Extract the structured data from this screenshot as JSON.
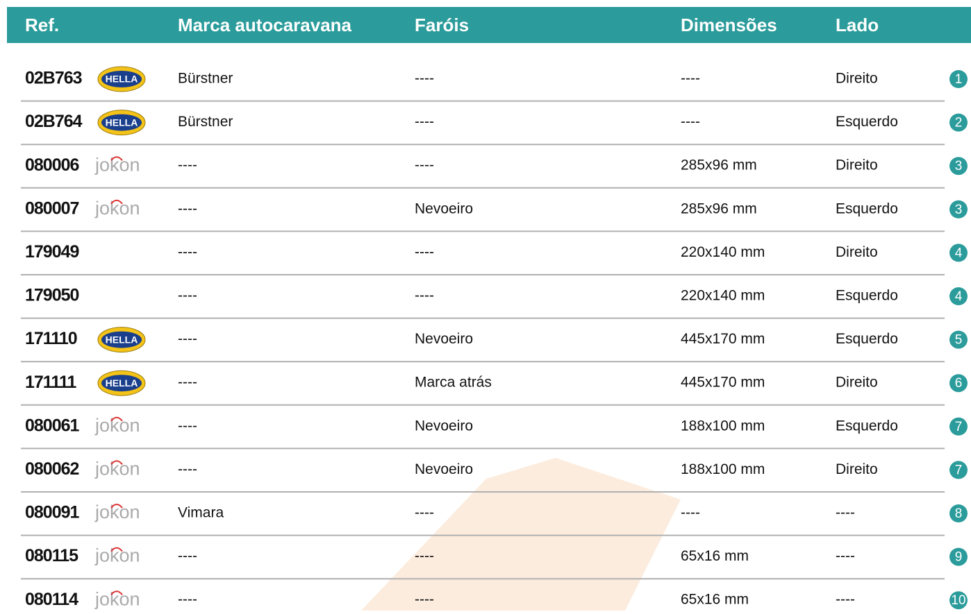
{
  "header": [
    "Ref.",
    "Marca autocaravana",
    "Faróis",
    "Dimensões",
    "Lado"
  ],
  "rows": [
    {
      "ref": "02B763",
      "logo": "HELLA",
      "brand": "Bürstner",
      "lights": "----",
      "dims": "----",
      "side": "Direito",
      "num": "1"
    },
    {
      "ref": "02B764",
      "logo": "HELLA",
      "brand": "Bürstner",
      "lights": "----",
      "dims": "----",
      "side": "Esquerdo",
      "num": "2"
    },
    {
      "ref": "080006",
      "logo": "jokon",
      "brand": "----",
      "lights": "----",
      "dims": "285x96 mm",
      "side": "Direito",
      "num": "3"
    },
    {
      "ref": "080007",
      "logo": "jokon",
      "brand": "----",
      "lights": "Nevoeiro",
      "dims": "285x96 mm",
      "side": "Esquerdo",
      "num": "3"
    },
    {
      "ref": "179049",
      "logo": null,
      "brand": "----",
      "lights": "----",
      "dims": "220x140 mm",
      "side": "Direito",
      "num": "4"
    },
    {
      "ref": "179050",
      "logo": null,
      "brand": "----",
      "lights": "----",
      "dims": "220x140 mm",
      "side": "Esquerdo",
      "num": "4"
    },
    {
      "ref": "171110",
      "logo": "HELLA",
      "brand": "----",
      "lights": "Nevoeiro",
      "dims": "445x170 mm",
      "side": "Esquerdo",
      "num": "5"
    },
    {
      "ref": "171111",
      "logo": "HELLA",
      "brand": "----",
      "lights": "Marca atrás",
      "dims": "445x170 mm",
      "side": "Direito",
      "num": "6"
    },
    {
      "ref": "080061",
      "logo": "jokon",
      "brand": "----",
      "lights": "Nevoeiro",
      "dims": "188x100 mm",
      "side": "Esquerdo",
      "num": "7"
    },
    {
      "ref": "080062",
      "logo": "jokon",
      "brand": "----",
      "lights": "Nevoeiro",
      "dims": "188x100 mm",
      "side": "Direito",
      "num": "7"
    },
    {
      "ref": "080091",
      "logo": "jokon",
      "brand": "Vimara",
      "lights": "----",
      "dims": "----",
      "side": "----",
      "num": "8"
    },
    {
      "ref": "080115",
      "logo": "jokon",
      "brand": "----",
      "lights": "----",
      "dims": "65x16 mm",
      "side": "----",
      "num": "9"
    },
    {
      "ref": "080114",
      "logo": "jokon",
      "brand": "----",
      "lights": "----",
      "dims": "65x16 mm",
      "side": "----",
      "num": "10"
    }
  ]
}
